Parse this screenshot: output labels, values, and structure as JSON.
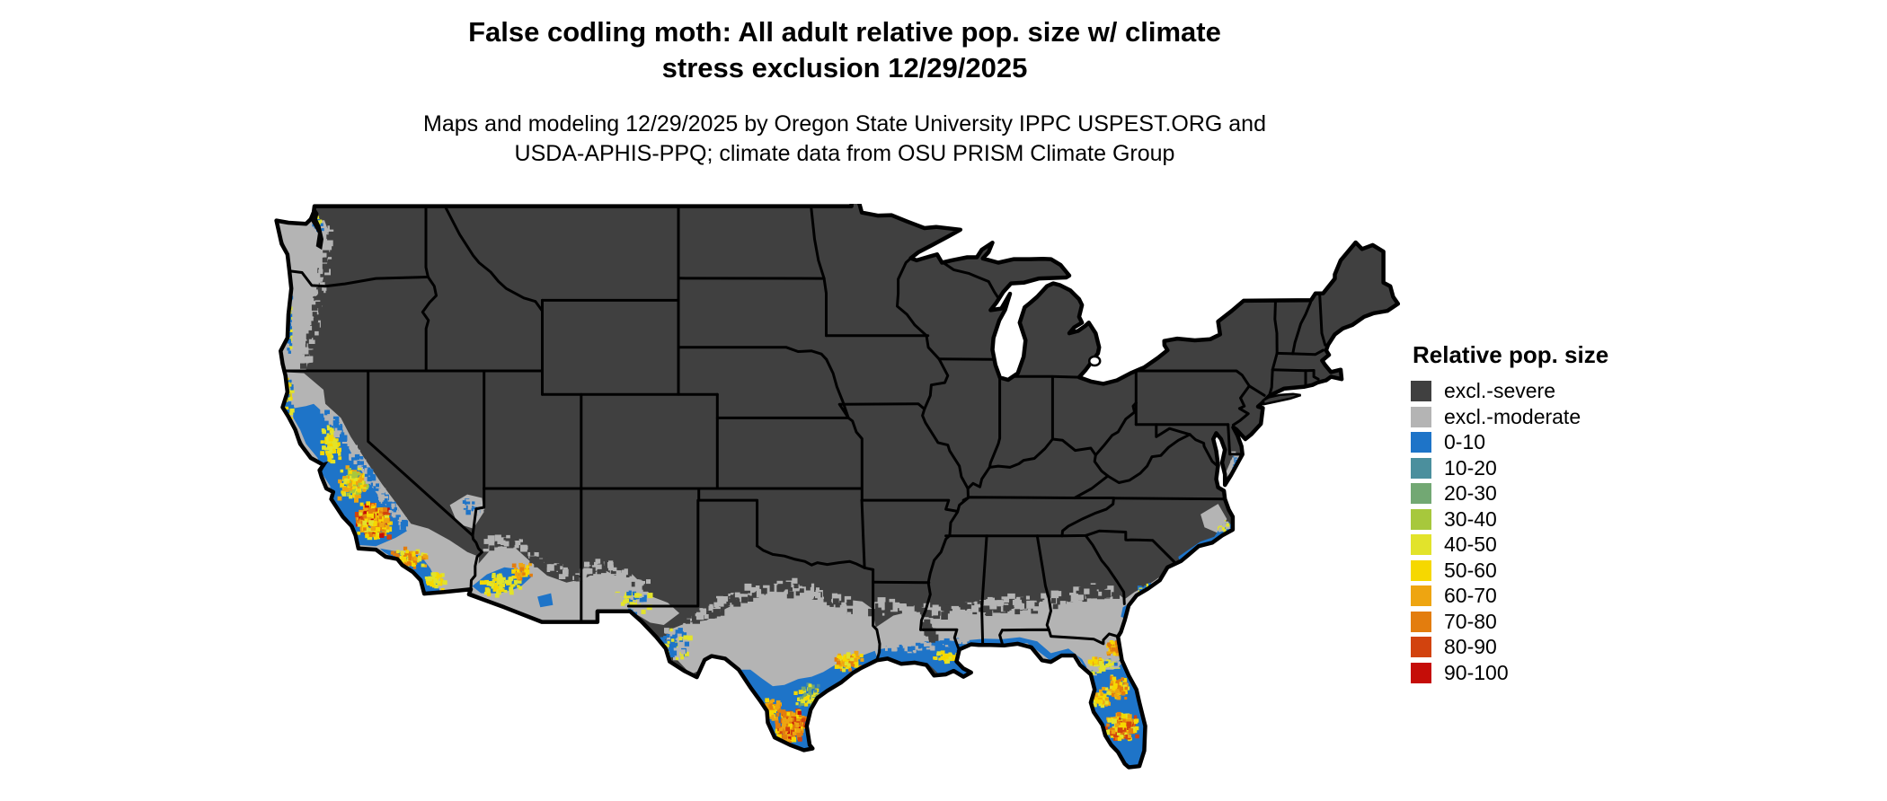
{
  "figure": {
    "title_line1": "False codling moth: All adult relative pop. size w/ climate",
    "title_line2": "stress exclusion 12/29/2025",
    "subtitle_line1": "Maps and modeling 12/29/2025 by Oregon State University IPPC USPEST.ORG and",
    "subtitle_line2": "USDA-APHIS-PPQ; climate data from OSU PRISM Climate Group"
  },
  "legend": {
    "title": "Relative pop. size",
    "items": [
      {
        "label": "excl.-severe",
        "color": "#404040"
      },
      {
        "label": "excl.-moderate",
        "color": "#b4b4b4"
      },
      {
        "label": "0-10",
        "color": "#1e74c8"
      },
      {
        "label": "10-20",
        "color": "#4b8f9d"
      },
      {
        "label": "20-30",
        "color": "#72a873"
      },
      {
        "label": "30-40",
        "color": "#a7c83c"
      },
      {
        "label": "40-50",
        "color": "#e2e32b"
      },
      {
        "label": "50-60",
        "color": "#f6d800"
      },
      {
        "label": "60-70",
        "color": "#eea511"
      },
      {
        "label": "70-80",
        "color": "#e37d0e"
      },
      {
        "label": "80-90",
        "color": "#d2430e"
      },
      {
        "label": "90-100",
        "color": "#c50d08"
      }
    ]
  },
  "map": {
    "type": "raster-choropleth",
    "region": "Contiguous United States",
    "water_color": "#ffffff",
    "state_border_color": "#000000",
    "dominant_class": "excl.-severe",
    "visible_hotspots": [
      "Pacific coast lowlands (W Washington, W Oregon, N California coast): excl.-moderate with scattered 0-10",
      "California Central Valley and coastal ranges: 0-10 with 40-100 hotspots in the southern San Joaquin Valley",
      "Southern California coastal plain: 0-10 with 40-80 patches",
      "Southern Nevada and SW Arizona through S New Mexico: excl.-moderate mottled with 0-10",
      "South and coastal Texas: 0-10 with 50-100 core along the lower Rio Grande and near Houston",
      "Gulf Coast of Louisiana, Mississippi, Alabama: excl.-moderate with 0-10 coastal fringe",
      "Florida peninsula: 0-10 with 40-90 clusters in central and southern Florida",
      "Coastal North Carolina: small 0-10 patch near Cape Hatteras",
      "Remainder of CONUS: excl.-severe"
    ]
  }
}
